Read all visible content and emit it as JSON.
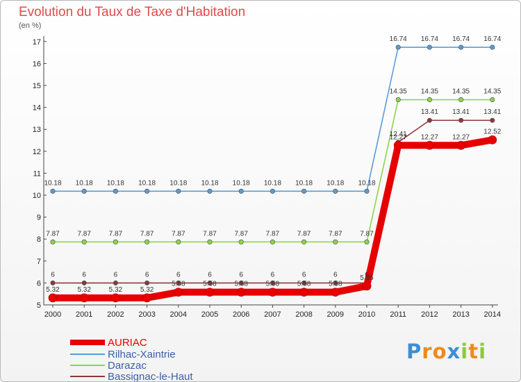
{
  "chart_data": {
    "type": "line",
    "title": "Evolution du Taux de Taxe d'Habitation",
    "subtitle": "(en %)",
    "x": [
      "2000",
      "2001",
      "2002",
      "2003",
      "2004",
      "2005",
      "2006",
      "2007",
      "2008",
      "2009",
      "2010",
      "2011",
      "2012",
      "2013",
      "2014"
    ],
    "ylim": [
      5,
      17
    ],
    "yticks": [
      5,
      6,
      7,
      8,
      9,
      10,
      11,
      12,
      13,
      14,
      15,
      16,
      17
    ],
    "grid": false,
    "legend_position": "bottom-left",
    "series": [
      {
        "name": "AURIAC",
        "color": "#e60000",
        "values": [
          5.32,
          5.32,
          5.32,
          5.32,
          5.58,
          5.58,
          5.58,
          5.58,
          5.58,
          5.58,
          5.86,
          12.27,
          12.27,
          12.27,
          12.52
        ],
        "labels": [
          "5.32",
          "5.32",
          "5.32",
          "5.32",
          "5.58",
          "5.58",
          "5.58",
          "5.58",
          "5.58",
          "5.58",
          "5.86",
          "12.27",
          "12.27",
          "12.27",
          "12.52"
        ]
      },
      {
        "name": "Rilhac-Xaintrie",
        "color": "#5b9bd5",
        "values": [
          10.18,
          10.18,
          10.18,
          10.18,
          10.18,
          10.18,
          10.18,
          10.18,
          10.18,
          10.18,
          10.18,
          16.74,
          16.74,
          16.74,
          16.74
        ],
        "labels": [
          "10.18",
          "10.18",
          "10.18",
          "10.18",
          "10.18",
          "10.18",
          "10.18",
          "10.18",
          "10.18",
          "10.18",
          "10.18",
          "16.74",
          "16.74",
          "16.74",
          "16.74"
        ]
      },
      {
        "name": "Darazac",
        "color": "#8fd44d",
        "values": [
          7.87,
          7.87,
          7.87,
          7.87,
          7.87,
          7.87,
          7.87,
          7.87,
          7.87,
          7.87,
          7.87,
          14.35,
          14.35,
          14.35,
          14.35
        ],
        "labels": [
          "7.87",
          "7.87",
          "7.87",
          "7.87",
          "7.87",
          "7.87",
          "7.87",
          "7.87",
          "7.87",
          "7.87",
          "7.87",
          "14.35",
          "14.35",
          "14.35",
          "14.35"
        ]
      },
      {
        "name": "Bassignac-le-Haut",
        "color": "#8b3a3a",
        "values": [
          6,
          6,
          6,
          6,
          6,
          6,
          6,
          6,
          6,
          6,
          6,
          12.41,
          13.41,
          13.41,
          13.41
        ],
        "labels": [
          "6",
          "6",
          "6",
          "6",
          "6",
          "6",
          "6",
          "6",
          "6",
          "6",
          "6",
          "12.41",
          "13.41",
          "13.41",
          "13.41"
        ]
      }
    ]
  },
  "logo": {
    "letters": [
      "P",
      "r",
      "o",
      "x",
      "i",
      "t",
      "i"
    ],
    "colors": [
      "#3a8fd8",
      "#f08a1c",
      "#f08a1c",
      "#3a8fd8",
      "#8fc93a",
      "#f08a1c",
      "#8fc93a"
    ]
  }
}
